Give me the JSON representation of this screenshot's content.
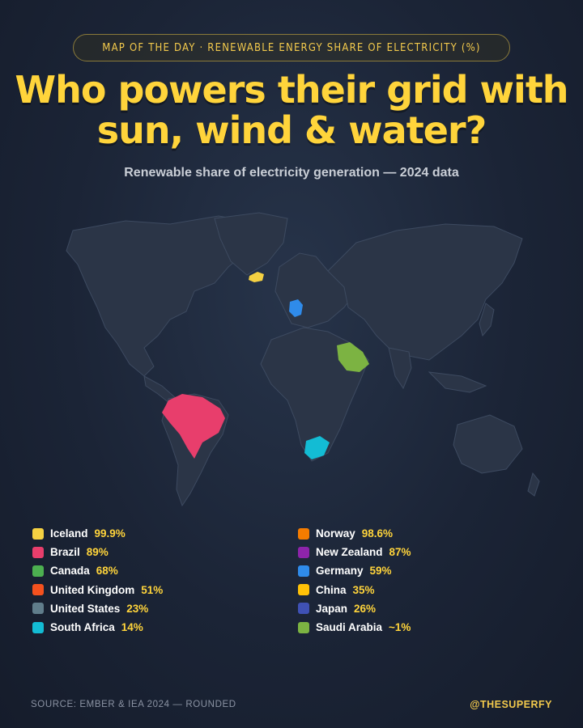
{
  "kicker": "MAP OF THE DAY · RENEWABLE ENERGY SHARE OF ELECTRICITY (%)",
  "headline_line1": "Who powers their grid with",
  "headline_line2": "sun, wind & water?",
  "subtitle": "Renewable share of electricity generation — 2024 data",
  "legend_left": [
    {
      "name": "Iceland",
      "value": "99.9%",
      "color": "#f5d142"
    },
    {
      "name": "Brazil",
      "value": "89%",
      "color": "#e83e6c"
    },
    {
      "name": "Canada",
      "value": "68%",
      "color": "#4caf50"
    },
    {
      "name": "United Kingdom",
      "value": "51%",
      "color": "#f4511e"
    },
    {
      "name": "United States",
      "value": "23%",
      "color": "#607d8b"
    },
    {
      "name": "South Africa",
      "value": "14%",
      "color": "#13bcd4"
    }
  ],
  "legend_right": [
    {
      "name": "Norway",
      "value": "98.6%",
      "color": "#f57c00"
    },
    {
      "name": "New Zealand",
      "value": "87%",
      "color": "#8e24aa"
    },
    {
      "name": "Germany",
      "value": "59%",
      "color": "#2f8bea"
    },
    {
      "name": "China",
      "value": "35%",
      "color": "#ffc107"
    },
    {
      "name": "Japan",
      "value": "26%",
      "color": "#3f51b5"
    },
    {
      "name": "Saudi Arabia",
      "value": "~1%",
      "color": "#7cb342"
    }
  ],
  "map_colors": {
    "land": "#2b3547",
    "border": "#3d4a60",
    "iceland": "#f5d142",
    "germany": "#2f8bea",
    "saudi_arabia": "#7cb342",
    "brazil": "#e83e6c",
    "south_africa": "#13bcd4"
  },
  "footer_source": "SOURCE: EMBER & IEA 2024 — ROUNDED",
  "footer_handle": "@THESUPERFY"
}
